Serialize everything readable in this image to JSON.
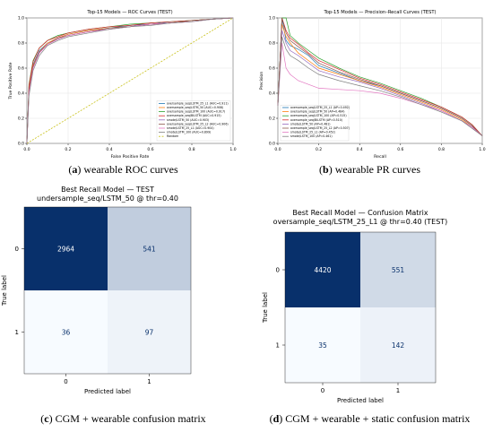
{
  "figures": [
    {
      "key": "a",
      "caption": {
        "letter": "a",
        "text": "wearable ROC curves"
      },
      "chart_data": {
        "type": "line",
        "title": "Top-15 Models — ROC Curves (TEST)",
        "xlabel": "False Positive Rate",
        "ylabel": "True Positive Rate",
        "xlim": [
          0,
          1
        ],
        "ylim": [
          0,
          1
        ],
        "xticks": [
          "0.0",
          "0.2",
          "0.4",
          "0.6",
          "0.8",
          "1.0"
        ],
        "yticks": [
          "0.0",
          "0.2",
          "0.4",
          "0.6",
          "0.8",
          "1.0"
        ],
        "grid": true,
        "legend_position": "lower-right",
        "baseline": {
          "x": [
            0,
            1
          ],
          "y": [
            0,
            1
          ],
          "color": "#c9c21a"
        },
        "series": [
          {
            "name": "oversample_seq/LSTM_25_L1 (AUC=0.911)",
            "color": "#1f77b4",
            "x": [
              0,
              0.01,
              0.03,
              0.06,
              0.1,
              0.15,
              0.2,
              0.3,
              0.4,
              0.5,
              0.6,
              0.7,
              0.8,
              0.9,
              1
            ],
            "y": [
              0,
              0.45,
              0.63,
              0.74,
              0.8,
              0.84,
              0.87,
              0.9,
              0.92,
              0.94,
              0.95,
              0.97,
              0.98,
              0.99,
              1
            ]
          },
          {
            "name": "oversample_seq/LSTM_50 (AUC=0.908)",
            "color": "#ff7f0e",
            "x": [
              0,
              0.01,
              0.03,
              0.06,
              0.1,
              0.15,
              0.2,
              0.3,
              0.4,
              0.5,
              0.6,
              0.7,
              0.8,
              0.9,
              1
            ],
            "y": [
              0,
              0.43,
              0.62,
              0.73,
              0.8,
              0.84,
              0.87,
              0.9,
              0.92,
              0.93,
              0.95,
              0.96,
              0.98,
              0.99,
              1
            ]
          },
          {
            "name": "oversample_seq/LSTM_100 (AUC=0.917)",
            "color": "#2ca02c",
            "x": [
              0,
              0.01,
              0.03,
              0.06,
              0.1,
              0.15,
              0.2,
              0.3,
              0.4,
              0.5,
              0.6,
              0.7,
              0.8,
              0.9,
              1
            ],
            "y": [
              0,
              0.47,
              0.66,
              0.76,
              0.82,
              0.86,
              0.88,
              0.91,
              0.93,
              0.95,
              0.96,
              0.97,
              0.98,
              0.99,
              1
            ]
          },
          {
            "name": "oversample_seq/BiLSTM (AUC=0.915)",
            "color": "#d62728",
            "x": [
              0,
              0.01,
              0.03,
              0.06,
              0.1,
              0.15,
              0.2,
              0.3,
              0.4,
              0.5,
              0.6,
              0.7,
              0.8,
              0.9,
              1
            ],
            "y": [
              0,
              0.46,
              0.65,
              0.76,
              0.82,
              0.85,
              0.88,
              0.91,
              0.93,
              0.94,
              0.96,
              0.97,
              0.98,
              0.99,
              1
            ]
          },
          {
            "name": "smote/LSTM_50 (AUC=0.903)",
            "color": "#9467bd",
            "x": [
              0,
              0.01,
              0.03,
              0.06,
              0.1,
              0.15,
              0.2,
              0.3,
              0.4,
              0.5,
              0.6,
              0.7,
              0.8,
              0.9,
              1
            ],
            "y": [
              0,
              0.4,
              0.6,
              0.72,
              0.79,
              0.83,
              0.86,
              0.89,
              0.91,
              0.93,
              0.95,
              0.96,
              0.97,
              0.99,
              1
            ]
          },
          {
            "name": "oversample_seq/LSTM_25_L2 (AUC=0.906)",
            "color": "#8c564b",
            "x": [
              0,
              0.01,
              0.03,
              0.06,
              0.1,
              0.15,
              0.2,
              0.3,
              0.4,
              0.5,
              0.6,
              0.7,
              0.8,
              0.9,
              1
            ],
            "y": [
              0,
              0.42,
              0.61,
              0.73,
              0.79,
              0.84,
              0.86,
              0.89,
              0.92,
              0.93,
              0.95,
              0.96,
              0.98,
              0.99,
              1
            ]
          },
          {
            "name": "smote/LSTM_25_L1 (AUC=0.904)",
            "color": "#e377c2",
            "x": [
              0,
              0.01,
              0.03,
              0.06,
              0.1,
              0.15,
              0.2,
              0.3,
              0.4,
              0.5,
              0.6,
              0.7,
              0.8,
              0.9,
              1
            ],
            "y": [
              0,
              0.41,
              0.6,
              0.72,
              0.79,
              0.83,
              0.86,
              0.89,
              0.91,
              0.93,
              0.95,
              0.96,
              0.97,
              0.99,
              1
            ]
          },
          {
            "name": "smote/LSTM_100 (AUC=0.899)",
            "color": "#7f7f7f",
            "x": [
              0,
              0.01,
              0.03,
              0.06,
              0.1,
              0.15,
              0.2,
              0.3,
              0.4,
              0.5,
              0.6,
              0.7,
              0.8,
              0.9,
              1
            ],
            "y": [
              0,
              0.38,
              0.58,
              0.7,
              0.78,
              0.82,
              0.85,
              0.88,
              0.91,
              0.93,
              0.94,
              0.96,
              0.97,
              0.99,
              1
            ]
          }
        ],
        "legend_extra": "Random"
      }
    },
    {
      "key": "b",
      "caption": {
        "letter": "b",
        "text": "wearable PR curves"
      },
      "chart_data": {
        "type": "line",
        "title": "Top-15 Models — Precision–Recall Curves (TEST)",
        "xlabel": "Recall",
        "ylabel": "Precision",
        "xlim": [
          0,
          1
        ],
        "ylim": [
          0,
          1
        ],
        "xticks": [
          "0.0",
          "0.2",
          "0.4",
          "0.6",
          "0.8",
          "1.0"
        ],
        "yticks": [
          "0.0",
          "0.2",
          "0.4",
          "0.6",
          "0.8",
          "1.0"
        ],
        "grid": true,
        "legend_position": "lower-left",
        "series": [
          {
            "name": "oversample_seq/LSTM_25_L1 (AP=0.492)",
            "color": "#1f77b4",
            "x": [
              0,
              0.02,
              0.04,
              0.06,
              0.1,
              0.15,
              0.2,
              0.3,
              0.4,
              0.5,
              0.6,
              0.7,
              0.8,
              0.9,
              0.95,
              1
            ],
            "y": [
              0.3,
              1,
              0.82,
              0.78,
              0.75,
              0.7,
              0.62,
              0.56,
              0.5,
              0.46,
              0.4,
              0.34,
              0.28,
              0.2,
              0.14,
              0.06
            ]
          },
          {
            "name": "oversample_seq/LSTM_50 (AP=0.484)",
            "color": "#ff7f0e",
            "x": [
              0,
              0.02,
              0.04,
              0.06,
              0.1,
              0.15,
              0.2,
              0.3,
              0.4,
              0.5,
              0.6,
              0.7,
              0.8,
              0.9,
              0.95,
              1
            ],
            "y": [
              0.3,
              0.95,
              0.85,
              0.8,
              0.72,
              0.66,
              0.6,
              0.55,
              0.5,
              0.45,
              0.39,
              0.33,
              0.27,
              0.19,
              0.13,
              0.06
            ]
          },
          {
            "name": "oversample_seq/LSTM_100 (AP=0.515)",
            "color": "#2ca02c",
            "x": [
              0,
              0.02,
              0.04,
              0.06,
              0.1,
              0.15,
              0.2,
              0.3,
              0.4,
              0.5,
              0.6,
              0.7,
              0.8,
              0.9,
              0.95,
              1
            ],
            "y": [
              0.3,
              1,
              1,
              0.86,
              0.8,
              0.74,
              0.68,
              0.6,
              0.53,
              0.48,
              0.42,
              0.36,
              0.29,
              0.21,
              0.15,
              0.06
            ]
          },
          {
            "name": "oversample_seq/BiLSTM (AP=0.510)",
            "color": "#d62728",
            "x": [
              0,
              0.02,
              0.04,
              0.06,
              0.1,
              0.15,
              0.2,
              0.3,
              0.4,
              0.5,
              0.6,
              0.7,
              0.8,
              0.9,
              0.95,
              1
            ],
            "y": [
              0.3,
              1,
              0.9,
              0.84,
              0.79,
              0.72,
              0.66,
              0.59,
              0.52,
              0.47,
              0.41,
              0.35,
              0.29,
              0.21,
              0.15,
              0.06
            ]
          },
          {
            "name": "smote/LSTM_50 (AP=0.481)",
            "color": "#9467bd",
            "x": [
              0,
              0.02,
              0.04,
              0.06,
              0.1,
              0.15,
              0.2,
              0.3,
              0.4,
              0.5,
              0.6,
              0.7,
              0.8,
              0.9,
              0.95,
              1
            ],
            "y": [
              0.3,
              0.9,
              0.8,
              0.74,
              0.7,
              0.64,
              0.58,
              0.53,
              0.49,
              0.44,
              0.38,
              0.32,
              0.26,
              0.18,
              0.13,
              0.06
            ]
          },
          {
            "name": "oversample_seq/LSTM_25_L2 (AP=0.507)",
            "color": "#8c564b",
            "x": [
              0,
              0.02,
              0.04,
              0.06,
              0.1,
              0.15,
              0.2,
              0.3,
              0.4,
              0.5,
              0.6,
              0.7,
              0.8,
              0.9,
              0.95,
              1
            ],
            "y": [
              0.3,
              1,
              0.88,
              0.82,
              0.77,
              0.71,
              0.64,
              0.57,
              0.51,
              0.46,
              0.4,
              0.34,
              0.28,
              0.2,
              0.14,
              0.06
            ]
          },
          {
            "name": "smote/LSTM_25_L1 (AP=0.452)",
            "color": "#e377c2",
            "x": [
              0,
              0.02,
              0.04,
              0.06,
              0.1,
              0.15,
              0.2,
              0.3,
              0.4,
              0.5,
              0.6,
              0.7,
              0.8,
              0.9,
              0.95,
              1
            ],
            "y": [
              0.3,
              0.8,
              0.6,
              0.55,
              0.5,
              0.47,
              0.44,
              0.43,
              0.42,
              0.4,
              0.36,
              0.31,
              0.26,
              0.18,
              0.13,
              0.06
            ]
          },
          {
            "name": "smote/LSTM_100 (AP=0.461)",
            "color": "#7f7f7f",
            "x": [
              0,
              0.02,
              0.04,
              0.06,
              0.1,
              0.15,
              0.2,
              0.3,
              0.4,
              0.5,
              0.6,
              0.7,
              0.8,
              0.9,
              0.95,
              1
            ],
            "y": [
              0.3,
              0.85,
              0.75,
              0.7,
              0.66,
              0.6,
              0.55,
              0.5,
              0.46,
              0.42,
              0.37,
              0.31,
              0.25,
              0.18,
              0.12,
              0.06
            ]
          }
        ]
      }
    },
    {
      "key": "c",
      "caption": {
        "letter": "c",
        "text": "CGM + wearable confusion matrix"
      },
      "chart_data": {
        "type": "heatmap",
        "title": "Best Recall Model — TEST",
        "subtitle": "undersample_seq/LSTM_50 @ thr=0.40",
        "xlabel": "Predicted label",
        "ylabel": "True label",
        "xticks": [
          "0",
          "1"
        ],
        "yticks": [
          "0",
          "1"
        ],
        "matrix": [
          [
            2964,
            541
          ],
          [
            36,
            97
          ]
        ],
        "colormap": "Blues"
      }
    },
    {
      "key": "d",
      "caption": {
        "letter": "d",
        "text": "CGM + wearable + static confusion matrix"
      },
      "chart_data": {
        "type": "heatmap",
        "title": "Best Recall Model — Confusion Matrix",
        "subtitle": "oversample_seq/LSTM_25_L1 @ thr=0.40 (TEST)",
        "xlabel": "Predicted label",
        "ylabel": "True label",
        "xticks": [
          "0",
          "1"
        ],
        "yticks": [
          "0",
          "1"
        ],
        "matrix": [
          [
            4420,
            551
          ],
          [
            35,
            142
          ]
        ],
        "colormap": "Blues"
      }
    }
  ]
}
